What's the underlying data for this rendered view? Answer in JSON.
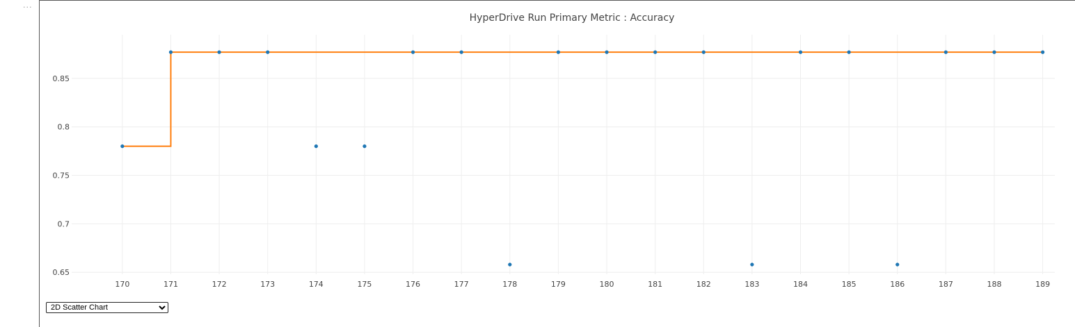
{
  "cell": {
    "menu_label": "···"
  },
  "chart_type_selector": {
    "selected": "2D Scatter Chart",
    "options": [
      "2D Scatter Chart"
    ]
  },
  "colors": {
    "point": "#1f77b4",
    "best_line": "#ff7f0e",
    "grid": "#eeeeee",
    "text": "#444444"
  },
  "chart_data": {
    "type": "scatter",
    "title": "HyperDrive Run Primary Metric : Accuracy",
    "xlabel": "",
    "ylabel": "",
    "xlim": [
      169.6,
      189.25
    ],
    "ylim": [
      0.648,
      0.895
    ],
    "x_ticks": [
      "170",
      "171",
      "172",
      "173",
      "174",
      "175",
      "176",
      "177",
      "178",
      "179",
      "180",
      "181",
      "182",
      "183",
      "184",
      "185",
      "186",
      "187",
      "188",
      "189"
    ],
    "y_ticks": [
      "0.65",
      "0.7",
      "0.75",
      "0.8",
      "0.85"
    ],
    "grid": true,
    "series": [
      {
        "type": "scatter",
        "x": [
          170,
          171,
          172,
          173,
          174,
          175,
          176,
          177,
          178,
          179,
          180,
          181,
          182,
          183,
          184,
          185,
          186,
          187,
          188,
          189
        ],
        "y": [
          0.78,
          0.877,
          0.877,
          0.877,
          0.78,
          0.78,
          0.877,
          0.877,
          0.658,
          0.877,
          0.877,
          0.877,
          0.877,
          0.658,
          0.877,
          0.877,
          0.658,
          0.877,
          0.877,
          0.877
        ]
      },
      {
        "type": "line",
        "step": "hv",
        "x": [
          170,
          171,
          172,
          173,
          174,
          175,
          176,
          177,
          178,
          179,
          180,
          181,
          182,
          183,
          184,
          185,
          186,
          187,
          188,
          189
        ],
        "y": [
          0.78,
          0.877,
          0.877,
          0.877,
          0.877,
          0.877,
          0.877,
          0.877,
          0.877,
          0.877,
          0.877,
          0.877,
          0.877,
          0.877,
          0.877,
          0.877,
          0.877,
          0.877,
          0.877,
          0.877
        ]
      }
    ]
  }
}
